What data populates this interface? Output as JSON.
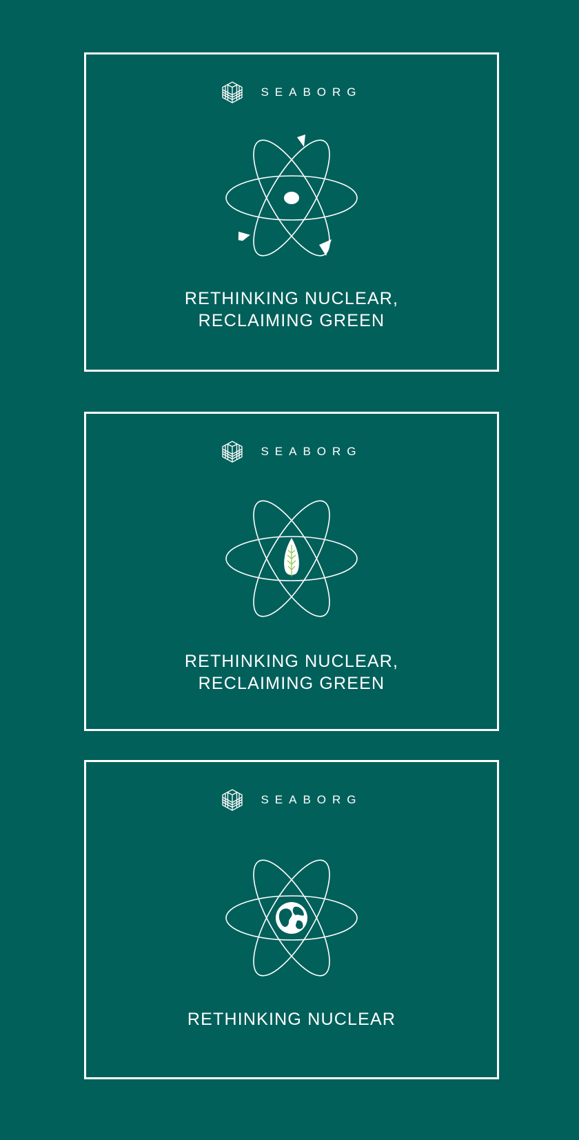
{
  "brand": {
    "wordmark": "SEABORG",
    "logo_icon": "hexagon-stripes-icon"
  },
  "colors": {
    "background": "#02605b",
    "foreground": "#ffffff",
    "leaf_vein": "#8cc63f"
  },
  "cards": [
    {
      "icon": "atom-with-arrows-icon",
      "tagline_line1": "RETHINKING NUCLEAR,",
      "tagline_line2": "RECLAIMING GREEN"
    },
    {
      "icon": "atom-with-leaf-icon",
      "tagline_line1": "RETHINKING NUCLEAR,",
      "tagline_line2": "RECLAIMING GREEN"
    },
    {
      "icon": "atom-with-globe-icon",
      "tagline_line1": "RETHINKING NUCLEAR"
    }
  ]
}
